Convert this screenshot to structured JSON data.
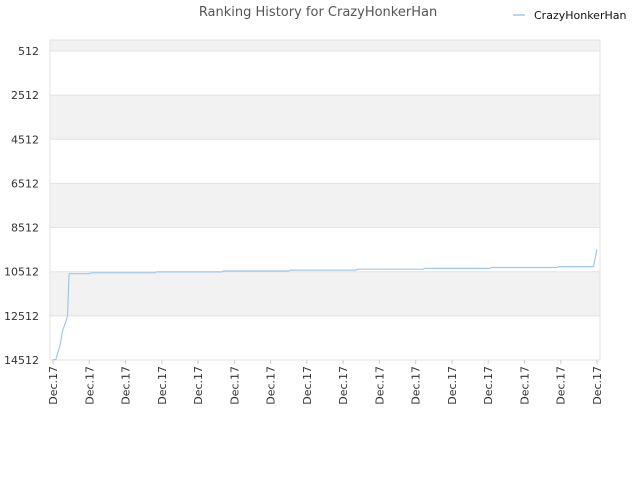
{
  "chart_data": {
    "type": "line",
    "title": "Ranking History for CrazyHonkerHan",
    "xlabel": "",
    "ylabel": "",
    "y_reversed": true,
    "ylim": [
      14512,
      14
    ],
    "y_ticks": [
      "512",
      "2512",
      "4512",
      "6512",
      "8512",
      "10512",
      "12512",
      "14512"
    ],
    "x_ticks": [
      "Dec.17",
      "Dec.17",
      "Dec.17",
      "Dec.17",
      "Dec.17",
      "Dec.17",
      "Dec.17",
      "Dec.17",
      "Dec.17",
      "Dec.17",
      "Dec.17",
      "Dec.17",
      "Dec.17",
      "Dec.17",
      "Dec.17",
      "Dec.17"
    ],
    "legend": {
      "position": "top-right"
    },
    "grid": true,
    "colors": {
      "series": "#9ec8ee",
      "band": "#f2f2f2"
    },
    "series": [
      {
        "name": "CrazyHonkerHan",
        "x": [
          0.0,
          0.08,
          0.2,
          0.26,
          0.35,
          0.4,
          0.44,
          0.45,
          1.0,
          1.05,
          2.8,
          2.85,
          4.65,
          4.7,
          6.5,
          6.55,
          8.35,
          8.4,
          10.2,
          10.25,
          12.05,
          12.1,
          13.9,
          13.95,
          14.9,
          15.0
        ],
        "values": [
          14500,
          14480,
          13800,
          13200,
          12800,
          12500,
          10700,
          10600,
          10600,
          10560,
          10560,
          10520,
          10520,
          10480,
          10480,
          10440,
          10440,
          10400,
          10400,
          10360,
          10360,
          10320,
          10320,
          10280,
          10280,
          9500
        ]
      }
    ]
  }
}
